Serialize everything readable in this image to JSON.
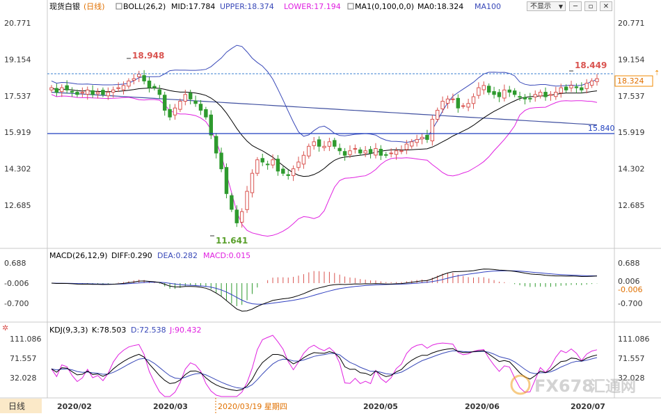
{
  "main_legend": {
    "symbol": "现货白银",
    "period": "(日线)",
    "boll_label": "BOLL(26,2)",
    "mid": "MID:17.784",
    "upper": "UPPER:18.374",
    "lower": "LOWER:17.194",
    "ma_label": "MA1(0,100,0,0)",
    "ma0": "MA0:18.324",
    "ma100": "MA100"
  },
  "toolbar": {
    "dropdown": "不显示",
    "minimize": "─",
    "restore": "▫",
    "close": "✕"
  },
  "price_axis": {
    "ticks": [
      20.771,
      19.154,
      17.537,
      15.919,
      14.302,
      12.685
    ],
    "current_price_label": "18.324",
    "range": [
      10.8,
      21.3
    ]
  },
  "annotations": {
    "high_early": "18.948",
    "low": "11.641",
    "high_recent": "18.449",
    "support_line": "15.840"
  },
  "macd": {
    "label": "MACD(26,12,9)",
    "diff": "DIFF:0.290",
    "dea": "DEA:0.282",
    "macd": "MACD:0.015",
    "ticks_left": [
      "0.688",
      "-0.006",
      "-0.700"
    ],
    "ticks_right": [
      "0.688",
      "0.006",
      "-0.006",
      "-0.700"
    ]
  },
  "kdj": {
    "label": "KDJ(9,3,3)",
    "k": "K:78.503",
    "d": "D:72.538",
    "j": "J:90.432",
    "ticks": [
      "111.086",
      "71.557",
      "32.028"
    ]
  },
  "bottom_bar": {
    "period_tag": "日线",
    "dates": [
      "2020/02",
      "2020/03",
      "2020/03/19 星期四",
      "2020/05",
      "2020/06",
      "2020/07"
    ]
  },
  "watermark": {
    "brand": "FX678",
    "cn": "汇通网"
  },
  "colors": {
    "up": "#d9534f",
    "down": "#2e9a2e",
    "mid": "#000000",
    "upper": "#3848b8",
    "lower": "#e020e0",
    "ma100": "#4050a0",
    "macd_up": "#d9534f",
    "macd_down": "#2e9a2e",
    "dea_line": "#3040c0",
    "diff_line": "#000000",
    "current_line": "#3a7fd0",
    "support_line": "#1f3fbf",
    "label_red": "#d9534f",
    "label_green": "#5aa02c",
    "tick_text": "#333333",
    "date_text": "#333333",
    "highlight_date": "#e07000"
  },
  "chart_data": {
    "type": "candlestick",
    "title": "现货白银 (日线)",
    "instrument": "现货白银",
    "period": "日线",
    "x_range": [
      "2020-01-27",
      "2020-07-02"
    ],
    "y_axis_ticks": [
      20.771,
      19.154,
      17.537,
      15.919,
      14.302,
      12.685
    ],
    "indicators": {
      "boll": {
        "params": "26,2",
        "mid": 17.784,
        "upper": 18.374,
        "lower": 17.194
      },
      "ma100": {
        "value": 18.324
      },
      "macd": {
        "params": "26,12,9",
        "diff": 0.29,
        "dea": 0.282,
        "macd": 0.015
      },
      "kdj": {
        "params": "9,3,3",
        "k": 78.503,
        "d": 72.538,
        "j": 90.432
      }
    },
    "annotations": {
      "high_feb": 18.948,
      "low_mar": 11.641,
      "high_jul": 18.449,
      "support": 15.84,
      "last_close": 18.324
    },
    "closes": [
      17.9,
      17.7,
      17.9,
      17.8,
      17.7,
      17.6,
      17.7,
      17.8,
      17.6,
      17.7,
      17.6,
      17.7,
      17.8,
      17.9,
      18.0,
      18.2,
      18.3,
      18.5,
      18.2,
      17.9,
      17.9,
      17.6,
      16.9,
      16.6,
      17.0,
      17.3,
      17.6,
      17.4,
      17.2,
      16.9,
      16.6,
      15.8,
      15.0,
      14.3,
      13.2,
      12.5,
      11.9,
      12.4,
      13.3,
      14.1,
      14.7,
      14.6,
      14.5,
      14.7,
      14.2,
      14.1,
      14.0,
      14.3,
      14.6,
      14.9,
      15.3,
      15.5,
      15.3,
      15.3,
      15.5,
      15.3,
      15.1,
      14.9,
      15.1,
      15.2,
      15.0,
      15.1,
      15.0,
      15.2,
      14.9,
      14.9,
      15.0,
      15.1,
      15.1,
      15.4,
      15.5,
      15.6,
      15.7,
      15.6,
      16.5,
      16.9,
      17.3,
      17.4,
      17.4,
      17.0,
      17.1,
      17.2,
      17.5,
      17.9,
      18.0,
      17.7,
      17.6,
      17.5,
      17.8,
      17.7,
      17.6,
      17.5,
      17.4,
      17.4,
      17.6,
      17.7,
      17.5,
      17.6,
      17.7,
      17.9,
      17.8,
      18.0,
      17.9,
      17.8,
      18.1,
      18.2,
      18.3
    ]
  }
}
